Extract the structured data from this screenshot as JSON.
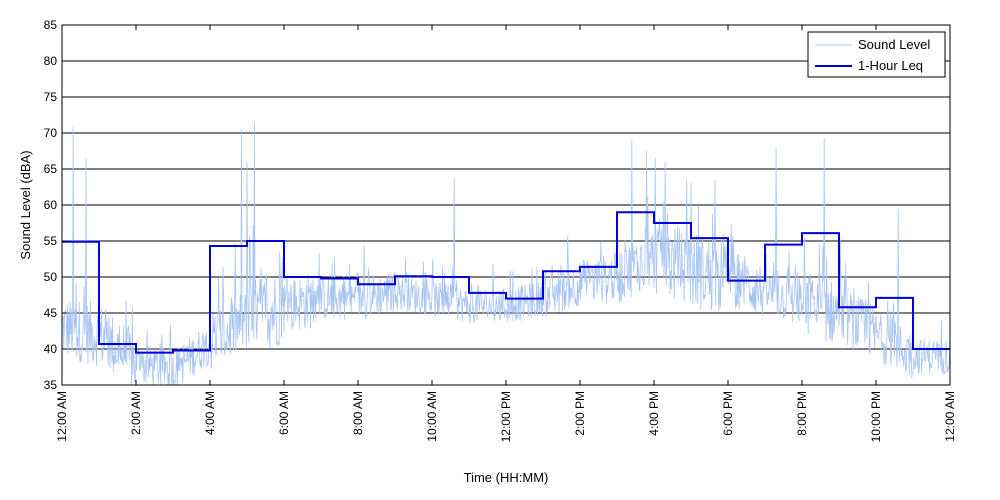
{
  "chart_data": {
    "type": "line",
    "xlabel": "Time (HH:MM)",
    "ylabel": "Sound Level (dBA)",
    "xlim": [
      0,
      24
    ],
    "ylim": [
      35,
      85
    ],
    "grid": true,
    "legend_position": "top-right",
    "x_ticks": [
      0,
      2,
      4,
      6,
      8,
      10,
      12,
      14,
      16,
      18,
      20,
      22,
      24
    ],
    "x_tick_labels": [
      "12:00 AM",
      "2:00 AM",
      "4:00 AM",
      "6:00 AM",
      "8:00 AM",
      "10:00 AM",
      "12:00 PM",
      "2:00 PM",
      "4:00 PM",
      "6:00 PM",
      "8:00 PM",
      "10:00 PM",
      "12:00 AM"
    ],
    "y_ticks": [
      35,
      40,
      45,
      50,
      55,
      60,
      65,
      70,
      75,
      80,
      85
    ],
    "y_tick_labels": [
      "35",
      "40",
      "45",
      "50",
      "55",
      "60",
      "65",
      "70",
      "75",
      "80",
      "85"
    ],
    "series": [
      {
        "name": "Sound Level",
        "color": "#a8c4f2",
        "style": "thin-noisy-line",
        "hourly_baseline": [
          43,
          42,
          38,
          37,
          41,
          44,
          46,
          47,
          47,
          48,
          47,
          46,
          46,
          47,
          49,
          50,
          53,
          51,
          50,
          48,
          46,
          45,
          42,
          39
        ],
        "hourly_spread": [
          9,
          9,
          6,
          6,
          9,
          11,
          8,
          6,
          6,
          5,
          5,
          5,
          5,
          6,
          7,
          8,
          11,
          11,
          8,
          6,
          9,
          8,
          7,
          5
        ],
        "peaks": [
          {
            "x": 0.3,
            "y": 70.8
          },
          {
            "x": 0.65,
            "y": 66.5
          },
          {
            "x": 4.85,
            "y": 70.5
          },
          {
            "x": 5.2,
            "y": 71.5
          },
          {
            "x": 5.0,
            "y": 66
          },
          {
            "x": 10.6,
            "y": 63.8
          },
          {
            "x": 15.4,
            "y": 69.0
          },
          {
            "x": 15.8,
            "y": 67.5
          },
          {
            "x": 16.3,
            "y": 66.0
          },
          {
            "x": 19.3,
            "y": 68.0
          },
          {
            "x": 20.6,
            "y": 69.3
          },
          {
            "x": 22.6,
            "y": 59.5
          }
        ]
      },
      {
        "name": "1-Hour Leq",
        "color": "#0000dd",
        "style": "step",
        "hours": [
          0,
          1,
          2,
          3,
          4,
          5,
          6,
          7,
          8,
          9,
          10,
          11,
          12,
          13,
          14,
          15,
          16,
          17,
          18,
          19,
          20,
          21,
          22,
          23
        ],
        "values": [
          54.9,
          40.7,
          39.5,
          39.8,
          54.3,
          55.0,
          50.0,
          49.8,
          49.0,
          50.1,
          50.0,
          47.8,
          47.0,
          50.8,
          51.4,
          59.0,
          57.5,
          55.4,
          49.5,
          54.5,
          56.1,
          45.8,
          47.1,
          40.0
        ]
      }
    ]
  }
}
